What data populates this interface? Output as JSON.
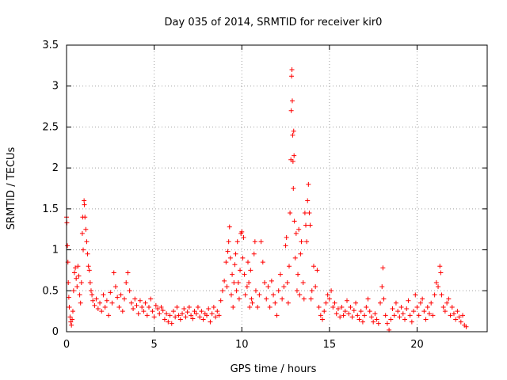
{
  "chart_data": {
    "type": "scatter",
    "title": "Day 035 of 2014, SRMTID for receiver kir0",
    "xlabel": "GPS time / hours",
    "ylabel": "SRMTID / TECUs",
    "xlim": [
      0,
      24
    ],
    "ylim": [
      0,
      3.5
    ],
    "xticks": [
      0,
      5,
      10,
      15,
      20
    ],
    "yticks": [
      0,
      0.5,
      1,
      1.5,
      2,
      2.5,
      3,
      3.5
    ],
    "xtick_labels": [
      "0",
      "5",
      "10",
      "15",
      "20"
    ],
    "ytick_labels": [
      "0",
      "0.5",
      "1",
      "1.5",
      "2",
      "2.5",
      "3",
      "3.5"
    ],
    "grid": true,
    "marker": "+",
    "series_color": "#ff0000",
    "points": [
      [
        0.0,
        1.4
      ],
      [
        0.02,
        1.33
      ],
      [
        0.05,
        1.05
      ],
      [
        0.08,
        0.85
      ],
      [
        0.1,
        0.6
      ],
      [
        0.13,
        0.42
      ],
      [
        0.16,
        0.3
      ],
      [
        0.2,
        0.18
      ],
      [
        0.24,
        0.12
      ],
      [
        0.28,
        0.08
      ],
      [
        0.32,
        0.15
      ],
      [
        0.36,
        0.25
      ],
      [
        0.4,
        0.5
      ],
      [
        0.45,
        0.72
      ],
      [
        0.5,
        0.78
      ],
      [
        0.55,
        0.65
      ],
      [
        0.6,
        0.55
      ],
      [
        0.65,
        0.8
      ],
      [
        0.7,
        0.68
      ],
      [
        0.75,
        0.45
      ],
      [
        0.8,
        0.35
      ],
      [
        0.85,
        0.6
      ],
      [
        0.9,
        1.2
      ],
      [
        0.92,
        1.4
      ],
      [
        0.95,
        1.0
      ],
      [
        1.0,
        1.6
      ],
      [
        1.02,
        1.55
      ],
      [
        1.05,
        1.4
      ],
      [
        1.1,
        1.25
      ],
      [
        1.15,
        1.1
      ],
      [
        1.2,
        0.95
      ],
      [
        1.25,
        0.8
      ],
      [
        1.3,
        0.75
      ],
      [
        1.35,
        0.6
      ],
      [
        1.4,
        0.5
      ],
      [
        1.45,
        0.45
      ],
      [
        1.5,
        0.38
      ],
      [
        1.6,
        0.32
      ],
      [
        1.7,
        0.4
      ],
      [
        1.8,
        0.28
      ],
      [
        1.9,
        0.35
      ],
      [
        2.0,
        0.25
      ],
      [
        2.1,
        0.45
      ],
      [
        2.2,
        0.3
      ],
      [
        2.3,
        0.38
      ],
      [
        2.4,
        0.2
      ],
      [
        2.5,
        0.48
      ],
      [
        2.6,
        0.35
      ],
      [
        2.7,
        0.72
      ],
      [
        2.8,
        0.55
      ],
      [
        2.9,
        0.42
      ],
      [
        3.0,
        0.3
      ],
      [
        3.1,
        0.45
      ],
      [
        3.2,
        0.25
      ],
      [
        3.3,
        0.4
      ],
      [
        3.4,
        0.6
      ],
      [
        3.5,
        0.72
      ],
      [
        3.6,
        0.5
      ],
      [
        3.7,
        0.35
      ],
      [
        3.8,
        0.28
      ],
      [
        3.9,
        0.4
      ],
      [
        4.0,
        0.32
      ],
      [
        4.1,
        0.22
      ],
      [
        4.2,
        0.38
      ],
      [
        4.3,
        0.3
      ],
      [
        4.4,
        0.25
      ],
      [
        4.5,
        0.35
      ],
      [
        4.6,
        0.2
      ],
      [
        4.7,
        0.3
      ],
      [
        4.8,
        0.4
      ],
      [
        4.9,
        0.25
      ],
      [
        5.0,
        0.18
      ],
      [
        5.1,
        0.32
      ],
      [
        5.2,
        0.28
      ],
      [
        5.3,
        0.22
      ],
      [
        5.4,
        0.3
      ],
      [
        5.5,
        0.26
      ],
      [
        5.6,
        0.15
      ],
      [
        5.7,
        0.22
      ],
      [
        5.8,
        0.12
      ],
      [
        5.9,
        0.2
      ],
      [
        6.0,
        0.1
      ],
      [
        6.1,
        0.25
      ],
      [
        6.2,
        0.18
      ],
      [
        6.3,
        0.3
      ],
      [
        6.4,
        0.2
      ],
      [
        6.5,
        0.15
      ],
      [
        6.6,
        0.22
      ],
      [
        6.7,
        0.28
      ],
      [
        6.8,
        0.18
      ],
      [
        6.9,
        0.24
      ],
      [
        7.0,
        0.3
      ],
      [
        7.1,
        0.2
      ],
      [
        7.2,
        0.16
      ],
      [
        7.3,
        0.25
      ],
      [
        7.4,
        0.22
      ],
      [
        7.5,
        0.3
      ],
      [
        7.6,
        0.18
      ],
      [
        7.7,
        0.25
      ],
      [
        7.8,
        0.15
      ],
      [
        7.9,
        0.22
      ],
      [
        8.0,
        0.2
      ],
      [
        8.1,
        0.28
      ],
      [
        8.2,
        0.12
      ],
      [
        8.3,
        0.22
      ],
      [
        8.4,
        0.3
      ],
      [
        8.5,
        0.18
      ],
      [
        8.6,
        0.25
      ],
      [
        8.7,
        0.2
      ],
      [
        8.8,
        0.38
      ],
      [
        8.9,
        0.5
      ],
      [
        9.0,
        0.62
      ],
      [
        9.1,
        0.85
      ],
      [
        9.15,
        0.55
      ],
      [
        9.2,
        0.98
      ],
      [
        9.25,
        1.1
      ],
      [
        9.3,
        1.28
      ],
      [
        9.35,
        0.9
      ],
      [
        9.4,
        0.45
      ],
      [
        9.45,
        0.7
      ],
      [
        9.5,
        0.3
      ],
      [
        9.55,
        0.6
      ],
      [
        9.6,
        0.82
      ],
      [
        9.65,
        0.95
      ],
      [
        9.7,
        0.5
      ],
      [
        9.75,
        1.1
      ],
      [
        9.8,
        0.6
      ],
      [
        9.85,
        0.4
      ],
      [
        9.9,
        0.75
      ],
      [
        9.95,
        1.2
      ],
      [
        10.0,
        1.22
      ],
      [
        10.05,
        0.9
      ],
      [
        10.1,
        1.15
      ],
      [
        10.15,
        0.7
      ],
      [
        10.2,
        0.45
      ],
      [
        10.3,
        0.55
      ],
      [
        10.35,
        0.85
      ],
      [
        10.4,
        0.6
      ],
      [
        10.45,
        0.3
      ],
      [
        10.5,
        0.75
      ],
      [
        10.55,
        0.4
      ],
      [
        10.6,
        0.35
      ],
      [
        10.7,
        0.95
      ],
      [
        10.75,
        1.1
      ],
      [
        10.8,
        0.5
      ],
      [
        10.9,
        0.3
      ],
      [
        11.0,
        0.45
      ],
      [
        11.1,
        1.1
      ],
      [
        11.2,
        0.85
      ],
      [
        11.3,
        0.6
      ],
      [
        11.4,
        0.4
      ],
      [
        11.5,
        0.55
      ],
      [
        11.6,
        0.3
      ],
      [
        11.7,
        0.62
      ],
      [
        11.8,
        0.45
      ],
      [
        11.9,
        0.35
      ],
      [
        12.0,
        0.2
      ],
      [
        12.1,
        0.5
      ],
      [
        12.2,
        0.7
      ],
      [
        12.3,
        0.4
      ],
      [
        12.4,
        0.55
      ],
      [
        12.5,
        1.05
      ],
      [
        12.55,
        1.15
      ],
      [
        12.6,
        0.6
      ],
      [
        12.65,
        0.35
      ],
      [
        12.7,
        0.8
      ],
      [
        12.75,
        1.45
      ],
      [
        12.8,
        2.1
      ],
      [
        12.82,
        2.7
      ],
      [
        12.84,
        3.12
      ],
      [
        12.86,
        3.2
      ],
      [
        12.88,
        2.82
      ],
      [
        12.9,
        2.4
      ],
      [
        12.92,
        2.08
      ],
      [
        12.94,
        1.75
      ],
      [
        12.96,
        2.45
      ],
      [
        12.98,
        2.15
      ],
      [
        13.0,
        1.35
      ],
      [
        13.05,
        0.9
      ],
      [
        13.1,
        1.2
      ],
      [
        13.15,
        0.5
      ],
      [
        13.2,
        0.7
      ],
      [
        13.25,
        1.25
      ],
      [
        13.3,
        0.45
      ],
      [
        13.35,
        0.95
      ],
      [
        13.4,
        1.1
      ],
      [
        13.5,
        0.6
      ],
      [
        13.55,
        0.4
      ],
      [
        13.6,
        1.45
      ],
      [
        13.65,
        1.3
      ],
      [
        13.7,
        1.1
      ],
      [
        13.75,
        1.6
      ],
      [
        13.8,
        1.8
      ],
      [
        13.85,
        1.45
      ],
      [
        13.9,
        1.3
      ],
      [
        13.95,
        0.4
      ],
      [
        14.0,
        0.5
      ],
      [
        14.1,
        0.8
      ],
      [
        14.2,
        0.55
      ],
      [
        14.3,
        0.75
      ],
      [
        14.4,
        0.3
      ],
      [
        14.5,
        0.2
      ],
      [
        14.6,
        0.15
      ],
      [
        14.7,
        0.25
      ],
      [
        14.8,
        0.35
      ],
      [
        14.9,
        0.45
      ],
      [
        15.0,
        0.4
      ],
      [
        15.1,
        0.5
      ],
      [
        15.2,
        0.3
      ],
      [
        15.3,
        0.35
      ],
      [
        15.4,
        0.22
      ],
      [
        15.5,
        0.28
      ],
      [
        15.6,
        0.18
      ],
      [
        15.7,
        0.3
      ],
      [
        15.8,
        0.2
      ],
      [
        15.9,
        0.25
      ],
      [
        16.0,
        0.38
      ],
      [
        16.1,
        0.22
      ],
      [
        16.2,
        0.3
      ],
      [
        16.3,
        0.18
      ],
      [
        16.4,
        0.26
      ],
      [
        16.5,
        0.35
      ],
      [
        16.6,
        0.2
      ],
      [
        16.7,
        0.15
      ],
      [
        16.8,
        0.25
      ],
      [
        16.9,
        0.12
      ],
      [
        17.0,
        0.2
      ],
      [
        17.1,
        0.3
      ],
      [
        17.2,
        0.4
      ],
      [
        17.3,
        0.25
      ],
      [
        17.4,
        0.18
      ],
      [
        17.5,
        0.12
      ],
      [
        17.6,
        0.22
      ],
      [
        17.7,
        0.15
      ],
      [
        17.8,
        0.1
      ],
      [
        17.9,
        0.35
      ],
      [
        18.0,
        0.55
      ],
      [
        18.05,
        0.78
      ],
      [
        18.1,
        0.4
      ],
      [
        18.2,
        0.2
      ],
      [
        18.3,
        0.1
      ],
      [
        18.4,
        0.02
      ],
      [
        18.5,
        0.15
      ],
      [
        18.6,
        0.28
      ],
      [
        18.7,
        0.2
      ],
      [
        18.8,
        0.35
      ],
      [
        18.9,
        0.25
      ],
      [
        19.0,
        0.18
      ],
      [
        19.1,
        0.3
      ],
      [
        19.2,
        0.22
      ],
      [
        19.3,
        0.15
      ],
      [
        19.4,
        0.28
      ],
      [
        19.5,
        0.38
      ],
      [
        19.6,
        0.2
      ],
      [
        19.7,
        0.12
      ],
      [
        19.8,
        0.25
      ],
      [
        19.9,
        0.45
      ],
      [
        20.0,
        0.3
      ],
      [
        20.1,
        0.2
      ],
      [
        20.2,
        0.35
      ],
      [
        20.3,
        0.4
      ],
      [
        20.4,
        0.25
      ],
      [
        20.5,
        0.15
      ],
      [
        20.6,
        0.3
      ],
      [
        20.7,
        0.22
      ],
      [
        20.8,
        0.35
      ],
      [
        20.9,
        0.2
      ],
      [
        21.0,
        0.45
      ],
      [
        21.1,
        0.6
      ],
      [
        21.2,
        0.55
      ],
      [
        21.3,
        0.8
      ],
      [
        21.35,
        0.72
      ],
      [
        21.4,
        0.45
      ],
      [
        21.5,
        0.3
      ],
      [
        21.6,
        0.25
      ],
      [
        21.7,
        0.35
      ],
      [
        21.8,
        0.4
      ],
      [
        21.9,
        0.2
      ],
      [
        22.0,
        0.3
      ],
      [
        22.1,
        0.22
      ],
      [
        22.2,
        0.15
      ],
      [
        22.3,
        0.25
      ],
      [
        22.4,
        0.18
      ],
      [
        22.5,
        0.12
      ],
      [
        22.6,
        0.2
      ],
      [
        22.7,
        0.08
      ],
      [
        22.8,
        0.06
      ]
    ]
  }
}
